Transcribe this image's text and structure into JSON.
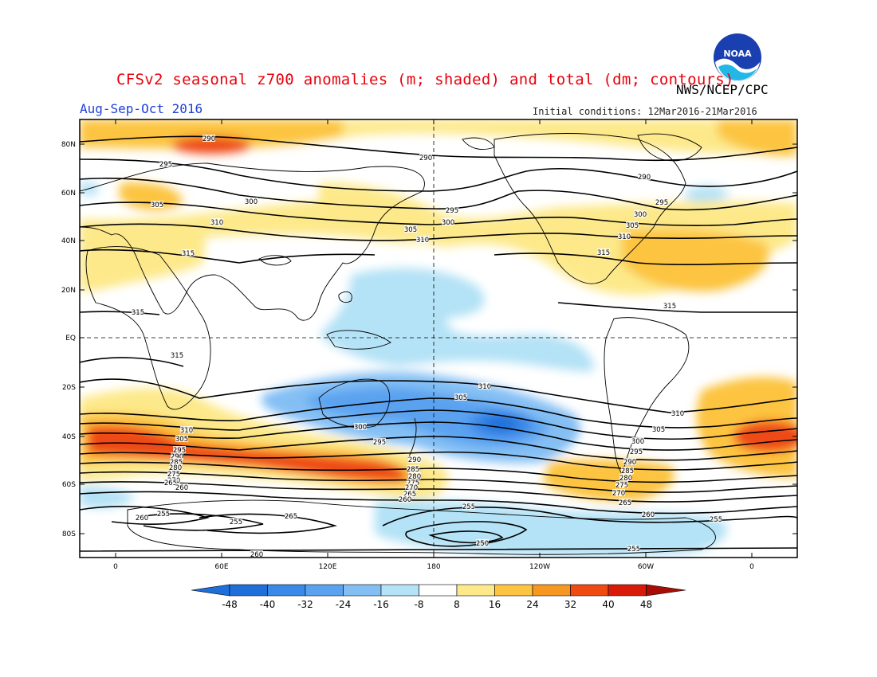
{
  "title": "CFSv2 seasonal z700 anomalies (m; shaded) and total (dm; contours)",
  "agency": "NWS/NCEP/CPC",
  "period": "Aug-Sep-Oct 2016",
  "initial_conditions": "Initial conditions: 12Mar2016-21Mar2016",
  "logo_text": "NOAA",
  "axes": {
    "lat_ticks": [
      "80N",
      "60N",
      "40N",
      "20N",
      "EQ",
      "20S",
      "40S",
      "60S",
      "80S"
    ],
    "lon_ticks": [
      "0",
      "60E",
      "120E",
      "180",
      "120W",
      "60W",
      "0"
    ]
  },
  "colorbar": {
    "labels": [
      "-48",
      "-40",
      "-32",
      "-24",
      "-16",
      "-8",
      "8",
      "16",
      "24",
      "32",
      "40",
      "48"
    ],
    "colors": [
      "#1e6fd9",
      "#3a88e8",
      "#5aa2f0",
      "#84bff4",
      "#b4e2f6",
      "#ffffff",
      "#fde98a",
      "#fcc441",
      "#f6971f",
      "#ee4a12",
      "#d91a08",
      "#a80d05"
    ]
  },
  "contour_labels": [
    {
      "text": "290"
    },
    {
      "text": "295"
    },
    {
      "text": "305"
    },
    {
      "text": "300"
    },
    {
      "text": "310"
    },
    {
      "text": "315"
    },
    {
      "text": "290"
    },
    {
      "text": "295"
    },
    {
      "text": "300"
    },
    {
      "text": "305"
    },
    {
      "text": "310"
    },
    {
      "text": "315"
    },
    {
      "text": "290"
    },
    {
      "text": "295"
    },
    {
      "text": "300"
    },
    {
      "text": "305"
    },
    {
      "text": "310"
    },
    {
      "text": "315"
    },
    {
      "text": "315"
    },
    {
      "text": "315"
    },
    {
      "text": "310"
    },
    {
      "text": "305"
    },
    {
      "text": "300"
    },
    {
      "text": "295"
    },
    {
      "text": "310"
    },
    {
      "text": "305"
    },
    {
      "text": "300"
    },
    {
      "text": "295"
    },
    {
      "text": "290"
    },
    {
      "text": "285"
    },
    {
      "text": "280"
    },
    {
      "text": "275"
    },
    {
      "text": "270"
    },
    {
      "text": "265"
    },
    {
      "text": "310"
    },
    {
      "text": "305"
    },
    {
      "text": "295"
    },
    {
      "text": "290"
    },
    {
      "text": "285"
    },
    {
      "text": "280"
    },
    {
      "text": "275"
    },
    {
      "text": "270"
    },
    {
      "text": "265"
    },
    {
      "text": "260"
    },
    {
      "text": "290"
    },
    {
      "text": "285"
    },
    {
      "text": "280"
    },
    {
      "text": "275"
    },
    {
      "text": "270"
    },
    {
      "text": "265"
    },
    {
      "text": "260"
    },
    {
      "text": "260"
    },
    {
      "text": "255"
    },
    {
      "text": "255"
    },
    {
      "text": "265"
    },
    {
      "text": "260"
    },
    {
      "text": "255"
    },
    {
      "text": "250"
    },
    {
      "text": "255"
    },
    {
      "text": "260"
    },
    {
      "text": "255"
    }
  ]
}
